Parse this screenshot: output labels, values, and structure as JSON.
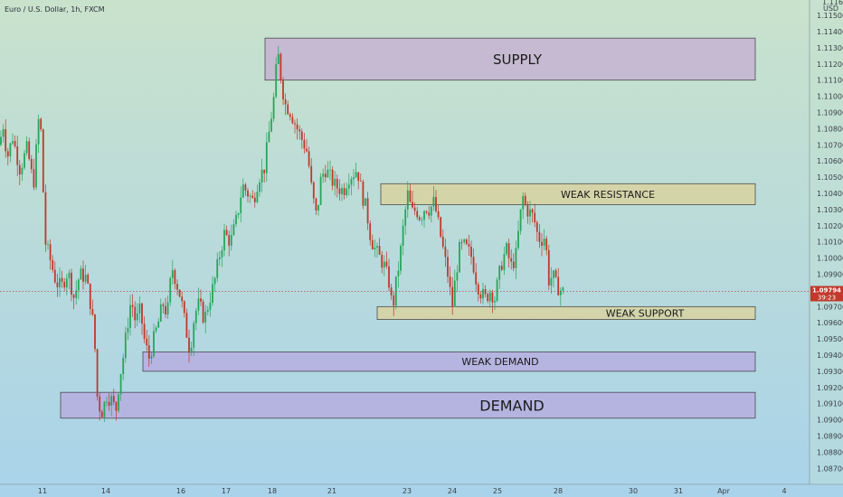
{
  "header": {
    "symbol": "Euro / U.S. Dollar, 1h, FXCM"
  },
  "colors": {
    "bg_top": "#c9e2cc",
    "bg_bottom": "#a9d3ea",
    "up": "#26a65b",
    "down": "#c0392b",
    "supply_fill": "#c4b6d0",
    "demand_fill": "#b6b0e0",
    "resistance_fill": "#d6d3a4"
  },
  "chart_data": {
    "type": "candlestick",
    "price_unit": "USD",
    "y_ticks": [
      "1.11500",
      "1.11400",
      "1.11300",
      "1.11200",
      "1.11100",
      "1.11000",
      "1.10900",
      "1.10800",
      "1.10700",
      "1.10600",
      "1.10500",
      "1.10400",
      "1.10300",
      "1.10200",
      "1.10100",
      "1.10000",
      "1.09900",
      "1.09700",
      "1.09600",
      "1.09500",
      "1.09400",
      "1.09300",
      "1.09200",
      "1.09100",
      "1.09000",
      "1.08900",
      "1.08800",
      "1.08700"
    ],
    "y_top_tick": "1.11600",
    "ylim": [
      1.0865,
      1.1161
    ],
    "x_ticks": [
      "11",
      "14",
      "16",
      "17",
      "18",
      "21",
      "23",
      "24",
      "25",
      "28",
      "30",
      "31",
      "Apr",
      "4"
    ],
    "last_price": "1.09794",
    "countdown": "39:23",
    "zones": [
      {
        "name": "supply",
        "label": "SUPPLY",
        "low": 1.111,
        "high": 1.1136
      },
      {
        "name": "weak-resistance",
        "label": "WEAK RESISTANCE",
        "low": 1.1033,
        "high": 1.1046
      },
      {
        "name": "weak-support",
        "label": "WEAK SUPPORT",
        "low": 1.0962,
        "high": 1.097
      },
      {
        "name": "weak-demand",
        "label": "WEAK DEMAND",
        "low": 1.093,
        "high": 1.0942
      },
      {
        "name": "demand",
        "label": "DEMAND",
        "low": 1.0901,
        "high": 1.0917
      }
    ],
    "price_path": [
      [
        0,
        1.107
      ],
      [
        3,
        1.1085
      ],
      [
        8,
        1.1062
      ],
      [
        14,
        1.1075
      ],
      [
        22,
        1.1055
      ],
      [
        30,
        1.1068
      ],
      [
        37,
        1.1045
      ],
      [
        44,
        1.1095
      ],
      [
        50,
        1.101
      ],
      [
        56,
        1.0998
      ],
      [
        62,
        1.0985
      ],
      [
        68,
        1.0982
      ],
      [
        75,
        1.0992
      ],
      [
        82,
        1.0975
      ],
      [
        88,
        1.099
      ],
      [
        95,
        1.0988
      ],
      [
        100,
        1.0972
      ],
      [
        104,
        1.0955
      ],
      [
        108,
        1.091
      ],
      [
        113,
        1.0905
      ],
      [
        118,
        1.0915
      ],
      [
        124,
        1.0912
      ],
      [
        128,
        1.0905
      ],
      [
        132,
        1.0925
      ],
      [
        136,
        1.0938
      ],
      [
        140,
        1.0955
      ],
      [
        145,
        1.0975
      ],
      [
        150,
        1.096
      ],
      [
        155,
        1.0968
      ],
      [
        160,
        1.0948
      ],
      [
        165,
        1.0938
      ],
      [
        170,
        1.095
      ],
      [
        175,
        1.096
      ],
      [
        180,
        1.0972
      ],
      [
        185,
        1.0965
      ],
      [
        190,
        1.0995
      ],
      [
        195,
        1.0985
      ],
      [
        200,
        1.0975
      ],
      [
        205,
        1.0958
      ],
      [
        210,
        1.0942
      ],
      [
        215,
        1.0965
      ],
      [
        220,
        1.0972
      ],
      [
        226,
        1.0962
      ],
      [
        232,
        1.0975
      ],
      [
        237,
        1.0985
      ],
      [
        242,
        1.1
      ],
      [
        248,
        1.1015
      ],
      [
        255,
        1.101
      ],
      [
        262,
        1.1025
      ],
      [
        268,
        1.1045
      ],
      [
        274,
        1.104
      ],
      [
        280,
        1.1035
      ],
      [
        286,
        1.105
      ],
      [
        292,
        1.1055
      ],
      [
        298,
        1.108
      ],
      [
        303,
        1.11
      ],
      [
        307,
        1.1128
      ],
      [
        311,
        1.111
      ],
      [
        315,
        1.1095
      ],
      [
        320,
        1.1092
      ],
      [
        325,
        1.1085
      ],
      [
        330,
        1.1078
      ],
      [
        335,
        1.1072
      ],
      [
        340,
        1.1065
      ],
      [
        345,
        1.104
      ],
      [
        350,
        1.1025
      ],
      [
        355,
        1.105
      ],
      [
        360,
        1.1055
      ],
      [
        365,
        1.105
      ],
      [
        370,
        1.1045
      ],
      [
        375,
        1.1043
      ],
      [
        380,
        1.1042
      ],
      [
        385,
        1.105
      ],
      [
        390,
        1.1052
      ],
      [
        395,
        1.1055
      ],
      [
        400,
        1.104
      ],
      [
        405,
        1.103
      ],
      [
        410,
        1.1012
      ],
      [
        415,
        1.1005
      ],
      [
        420,
        1.1
      ],
      [
        425,
        1.0995
      ],
      [
        430,
        1.0985
      ],
      [
        434,
        1.0968
      ],
      [
        438,
        1.0985
      ],
      [
        442,
        1.1
      ],
      [
        447,
        1.1025
      ],
      [
        451,
        1.104
      ],
      [
        455,
        1.1028
      ],
      [
        460,
        1.103
      ],
      [
        465,
        1.1025
      ],
      [
        470,
        1.1032
      ],
      [
        475,
        1.103
      ],
      [
        480,
        1.1035
      ],
      [
        485,
        1.102
      ],
      [
        490,
        1.1005
      ],
      [
        495,
        1.099
      ],
      [
        500,
        1.097
      ],
      [
        504,
        1.099
      ],
      [
        508,
        1.1005
      ],
      [
        512,
        1.1008
      ],
      [
        517,
        1.1005
      ],
      [
        522,
        1.1
      ],
      [
        527,
        1.0985
      ],
      [
        532,
        1.0978
      ],
      [
        537,
        1.0975
      ],
      [
        542,
        1.098
      ],
      [
        547,
        1.0975
      ],
      [
        552,
        1.099
      ],
      [
        556,
        1.1
      ],
      [
        560,
        1.1005
      ],
      [
        565,
        1.0995
      ],
      [
        570,
        1.1
      ],
      [
        575,
        1.1025
      ],
      [
        578,
        1.1038
      ],
      [
        582,
        1.103
      ],
      [
        586,
        1.1028
      ],
      [
        590,
        1.1025
      ],
      [
        594,
        1.1015
      ],
      [
        598,
        1.101
      ],
      [
        601,
        1.1015
      ],
      [
        604,
        1.1005
      ],
      [
        607,
        1.0985
      ],
      [
        611,
        1.099
      ],
      [
        614,
        1.0984
      ],
      [
        617,
        1.0982
      ],
      [
        620,
        1.098
      ],
      [
        623,
        1.0979
      ]
    ]
  }
}
